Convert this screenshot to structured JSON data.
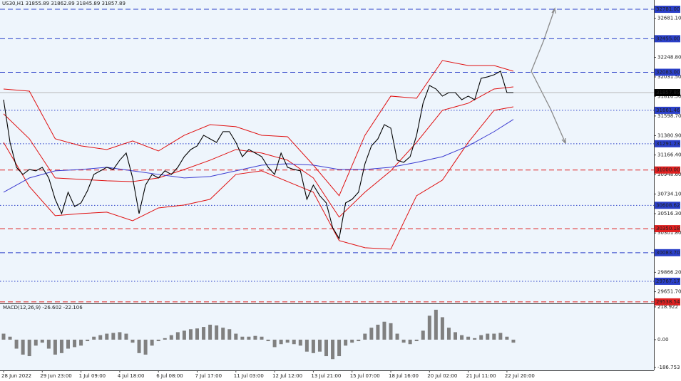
{
  "chart_data": [
    {
      "type": "line",
      "title": "US30,H1  31855.89 31862.89 31845.89 31857.89",
      "categories": [
        "28 Jun 2022",
        null,
        null,
        null,
        null,
        null,
        "29 Jun 23:00",
        null,
        null,
        null,
        null,
        null,
        "1 Jul 09:00",
        null,
        null,
        null,
        null,
        null,
        "4 Jul 18:00",
        null,
        null,
        null,
        null,
        null,
        "6 Jul 08:00",
        null,
        null,
        null,
        null,
        null,
        "7 Jul 17:00",
        null,
        null,
        null,
        null,
        null,
        "11 Jul 03:00",
        null,
        null,
        null,
        null,
        null,
        "12 Jul 12:00",
        null,
        null,
        null,
        null,
        null,
        "13 Jul 21:00",
        null,
        null,
        null,
        null,
        null,
        "15 Jul 07:00",
        null,
        null,
        null,
        null,
        null,
        "18 Jul 16:00",
        null,
        null,
        null,
        null,
        null,
        "20 Jul 02:00",
        null,
        null,
        null,
        null,
        null,
        "21 Jul 11:00",
        null,
        null,
        null,
        null,
        null,
        "22 Jul 20:00",
        null
      ],
      "series": [
        {
          "color": "#000000",
          "values": [
            31779,
            31306,
            31030,
            30951,
            31006,
            30991,
            31030,
            30912,
            30675,
            30517,
            30754,
            30596,
            30636,
            30770,
            30951,
            30991,
            31030,
            31006,
            31109,
            31188,
            30912,
            30517,
            30833,
            30951,
            30912,
            30991,
            30951,
            31030,
            31148,
            31227,
            31267,
            31385,
            31345,
            31306,
            31425,
            31425,
            31306,
            31148,
            31227,
            31188,
            31148,
            31030,
            30951,
            31188,
            31030,
            31006,
            30991,
            30675,
            30833,
            30715,
            30636,
            30360,
            30241,
            30636,
            30675,
            30754,
            31069,
            31267,
            31345,
            31503,
            31464,
            31109,
            31085,
            31148,
            31385,
            31740,
            31937,
            31898,
            31819,
            31858,
            31858,
            31779,
            31819,
            31779,
            32016,
            32032,
            32055,
            32095,
            31858,
            31858
          ]
        }
      ],
      "indicators": {
        "x": [
          0,
          4,
          8,
          12,
          16,
          20,
          24,
          28,
          32,
          36,
          40,
          44,
          48,
          52,
          56,
          60,
          64,
          68,
          72,
          76,
          79
        ],
        "series": [
          {
            "color": "#e01010",
            "values": [
              31898,
              31874,
              31346,
              31267,
              31227,
              31322,
              31211,
              31385,
              31503,
              31480,
              31385,
              31369,
              31054,
              30715,
              31385,
              31819,
              31795,
              32213,
              32158,
              32158,
              32095
            ]
          },
          {
            "color": "#e01010",
            "values": [
              31622,
              31346,
              30912,
              30896,
              30880,
              30872,
              30912,
              31006,
              31109,
              31227,
              31188,
              31109,
              30912,
              30478,
              30754,
              30991,
              31306,
              31661,
              31740,
              31898,
              31921
            ]
          },
          {
            "color": "#e01010",
            "values": [
              31306,
              30817,
              30494,
              30517,
              30533,
              30438,
              30580,
              30612,
              30675,
              30951,
              30991,
              30872,
              30754,
              30218,
              30139,
              30123,
              30715,
              30888,
              31306,
              31661,
              31700
            ]
          },
          {
            "color": "#3a3ad0",
            "values": [
              30754,
              30912,
              30991,
              31006,
              31030,
              30991,
              30951,
              30912,
              30928,
              30991,
              31054,
              31069,
              31054,
              31006,
              31006,
              31030,
              31085,
              31148,
              31267,
              31425,
              31561
            ]
          }
        ]
      },
      "levels": [
        {
          "value": 32781,
          "label": "32781.00",
          "color": "#2a3fc8",
          "style": "dash"
        },
        {
          "value": 32455,
          "label": "32455.00",
          "color": "#2a3fc8",
          "style": "dash"
        },
        {
          "value": 32083,
          "label": "32083.00",
          "color": "#2a3fc8",
          "style": "dash"
        },
        {
          "value": 31857.89,
          "label": "31857.89",
          "color": "#000000",
          "style": "solid"
        },
        {
          "value": 31661.46,
          "label": "31661.46",
          "color": "#2a3fc8",
          "style": "dot"
        },
        {
          "value": 31291.23,
          "label": "31291.23",
          "color": "#2a3fc8",
          "style": "dot"
        },
        {
          "value": 31000,
          "label": "31000.00",
          "color": "#e02020",
          "style": "dash"
        },
        {
          "value": 30608.62,
          "label": "30608.62",
          "color": "#2a3fc8",
          "style": "dot"
        },
        {
          "value": 30350.18,
          "label": "30350.18",
          "color": "#e02020",
          "style": "dash"
        },
        {
          "value": 30083.7,
          "label": "30083.70",
          "color": "#2a3fc8",
          "style": "dash"
        },
        {
          "value": 29767.17,
          "label": "29767.17",
          "color": "#2a3fc8",
          "style": "dot"
        },
        {
          "value": 29538.54,
          "label": "29538.54",
          "color": "#e02020",
          "style": "dash"
        }
      ],
      "ylim": [
        29530,
        32884
      ],
      "yticks": [
        {
          "value": 32681.1,
          "label": "32681.10"
        },
        {
          "value": 32248.8,
          "label": "32248.80"
        },
        {
          "value": 32031.5,
          "label": "32031.50"
        },
        {
          "value": 31816.5,
          "label": "31816.50"
        },
        {
          "value": 31598.7,
          "label": "31598.70"
        },
        {
          "value": 31380.9,
          "label": "31380.90"
        },
        {
          "value": 31166.4,
          "label": "31166.40"
        },
        {
          "value": 30948.6,
          "label": "30948.60"
        },
        {
          "value": 30734.1,
          "label": "30734.10"
        },
        {
          "value": 30516.3,
          "label": "30516.30"
        },
        {
          "value": 30301.8,
          "label": "30301.80"
        },
        {
          "value": 29866.2,
          "label": "29866.20"
        },
        {
          "value": 29651.7,
          "label": "29651.70"
        }
      ]
    },
    {
      "type": "bar",
      "title": "MACD(12,26,9) -26.602 -22.106",
      "color": "#808080",
      "values": [
        40,
        20,
        -60,
        -100,
        -110,
        -40,
        -20,
        -60,
        -100,
        -90,
        -60,
        -50,
        -40,
        -10,
        20,
        30,
        40,
        45,
        50,
        40,
        -20,
        -90,
        -100,
        -40,
        -10,
        10,
        30,
        50,
        60,
        70,
        75,
        85,
        100,
        95,
        80,
        70,
        40,
        20,
        20,
        25,
        20,
        -10,
        -50,
        -30,
        -20,
        -30,
        -40,
        -80,
        -90,
        -80,
        -110,
        -130,
        -110,
        -40,
        -20,
        -10,
        40,
        80,
        100,
        120,
        110,
        40,
        -20,
        -30,
        -10,
        60,
        160,
        200,
        150,
        80,
        50,
        30,
        20,
        10,
        30,
        40,
        40,
        45,
        20,
        -20
      ],
      "ylim": [
        -205,
        233
      ],
      "yticks": [
        218.922,
        {
          "value": 0,
          "label": "0.00"
        },
        -186.753
      ]
    }
  ]
}
